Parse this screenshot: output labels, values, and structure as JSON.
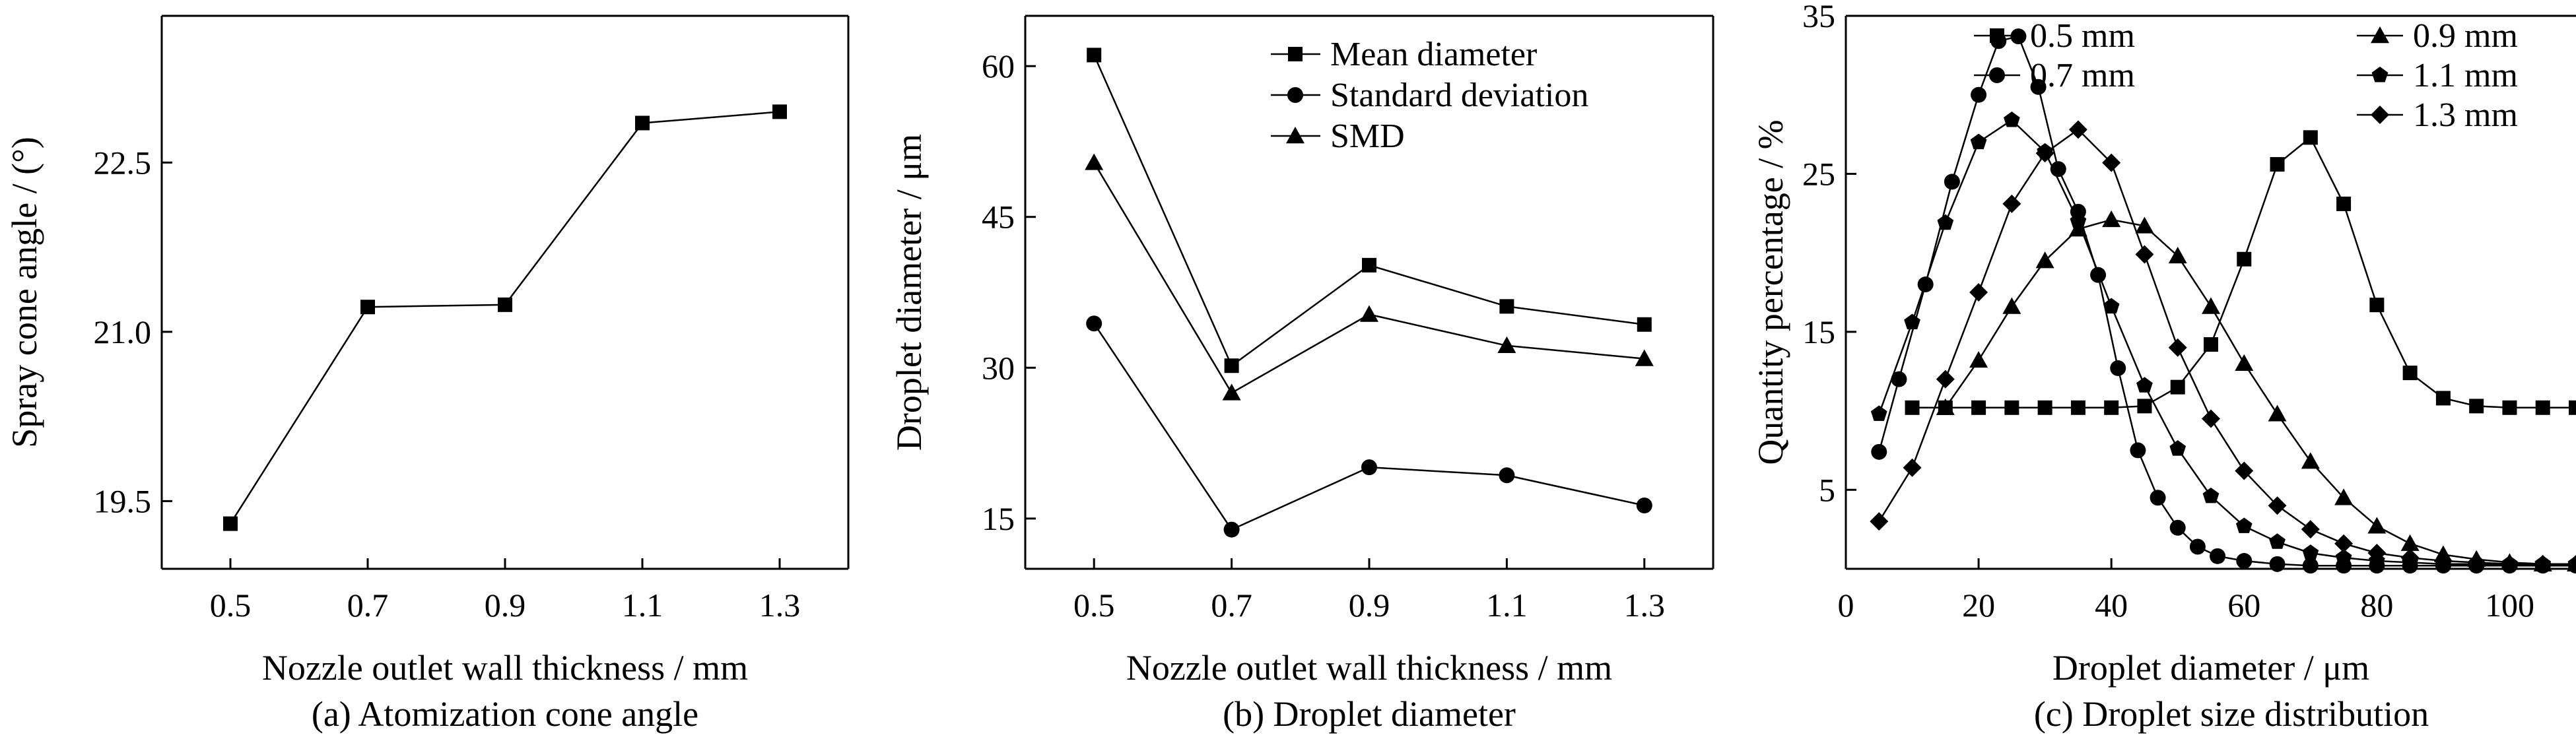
{
  "chart_data": [
    {
      "id": "a",
      "type": "line",
      "caption": "(a) Atomization cone angle",
      "xlabel": "Nozzle outlet wall thickness / mm",
      "ylabel": "Spray cone angle / (°)",
      "xlim": [
        0.4,
        1.4
      ],
      "ylim": [
        18.9,
        23.8
      ],
      "xticks": [
        0.5,
        0.7,
        0.9,
        1.1,
        1.3
      ],
      "xtick_labels": [
        "0.5",
        "0.7",
        "0.9",
        "1.1",
        "1.3"
      ],
      "yticks": [
        19.5,
        21.0,
        22.5
      ],
      "ytick_labels": [
        "19.5",
        "21.0",
        "22.5"
      ],
      "x": [
        0.5,
        0.7,
        0.9,
        1.1,
        1.3
      ],
      "series": [
        {
          "marker": "square",
          "values": [
            19.3,
            21.22,
            21.24,
            22.85,
            22.95
          ]
        }
      ],
      "legend": null
    },
    {
      "id": "b",
      "type": "line",
      "caption": "(b) Droplet diameter",
      "xlabel": "Nozzle outlet wall thickness / mm",
      "ylabel": "Droplet diameter / μm",
      "xlim": [
        0.4,
        1.4
      ],
      "ylim": [
        10,
        65
      ],
      "xticks": [
        0.5,
        0.7,
        0.9,
        1.1,
        1.3
      ],
      "xtick_labels": [
        "0.5",
        "0.7",
        "0.9",
        "1.1",
        "1.3"
      ],
      "yticks": [
        15,
        30,
        45,
        60
      ],
      "ytick_labels": [
        "15",
        "30",
        "45",
        "60"
      ],
      "x": [
        0.5,
        0.7,
        0.9,
        1.1,
        1.3
      ],
      "series": [
        {
          "name": "Mean diameter",
          "marker": "square",
          "values": [
            61.1,
            30.2,
            40.2,
            36.1,
            34.3
          ]
        },
        {
          "name": "Standard deviation",
          "marker": "circle",
          "values": [
            34.4,
            13.9,
            20.1,
            19.3,
            16.3
          ]
        },
        {
          "name": "SMD",
          "marker": "triangle",
          "values": [
            50.4,
            27.5,
            35.3,
            32.2,
            30.9
          ]
        }
      ],
      "legend": "top-right"
    },
    {
      "id": "c",
      "type": "line",
      "caption": "(c) Droplet size distribution",
      "xlabel": "Droplet diameter / μm",
      "ylabel": "Quantity percentage / %",
      "xlim": [
        0,
        110
      ],
      "ylim": [
        0,
        35
      ],
      "xticks": [
        0,
        20,
        40,
        60,
        80,
        100
      ],
      "xtick_labels": [
        "0",
        "20",
        "40",
        "60",
        "80",
        "100"
      ],
      "yticks": [
        5,
        15,
        25,
        35
      ],
      "ytick_labels": [
        "5",
        "15",
        "25",
        "35"
      ],
      "series": [
        {
          "name": "0.5 mm",
          "marker": "square",
          "x": [
            10,
            15,
            20,
            25,
            30,
            35,
            40,
            45,
            50,
            55,
            60,
            65,
            70,
            75,
            80,
            85,
            90,
            95,
            100,
            105,
            110
          ],
          "values": [
            10.2,
            10.2,
            10.2,
            10.2,
            10.2,
            10.2,
            10.2,
            10.3,
            11.5,
            14.2,
            19.6,
            25.6,
            27.3,
            23.1,
            16.7,
            12.4,
            10.8,
            10.3,
            10.2,
            10.2,
            10.2
          ]
        },
        {
          "name": "0.7 mm",
          "marker": "circle",
          "x": [
            5,
            8,
            12,
            16,
            20,
            23,
            26,
            29,
            32,
            35,
            38,
            41,
            44,
            47,
            50,
            53,
            56,
            60,
            65,
            70,
            75,
            80,
            85,
            90,
            95,
            100,
            105,
            110
          ],
          "values": [
            7.4,
            12.0,
            18.0,
            24.5,
            30.0,
            33.4,
            33.7,
            30.5,
            25.3,
            22.6,
            18.6,
            12.7,
            7.5,
            4.5,
            2.6,
            1.4,
            0.8,
            0.5,
            0.3,
            0.2,
            0.2,
            0.2,
            0.2,
            0.2,
            0.2,
            0.2,
            0.2,
            0.2
          ]
        },
        {
          "name": "0.9 mm",
          "marker": "triangle",
          "x": [
            15,
            20,
            25,
            30,
            35,
            40,
            45,
            50,
            55,
            60,
            65,
            70,
            75,
            80,
            85,
            90,
            95,
            100,
            105,
            110
          ],
          "values": [
            10.2,
            13.2,
            16.6,
            19.5,
            21.5,
            22.1,
            21.7,
            19.8,
            16.6,
            13.0,
            9.8,
            6.8,
            4.5,
            2.7,
            1.6,
            0.9,
            0.6,
            0.4,
            0.3,
            0.3
          ]
        },
        {
          "name": "1.1 mm",
          "marker": "pentagon",
          "x": [
            5,
            10,
            15,
            20,
            25,
            30,
            35,
            40,
            45,
            50,
            55,
            60,
            65,
            70,
            75,
            80,
            85,
            90,
            95,
            100,
            105,
            110
          ],
          "values": [
            9.8,
            15.6,
            21.9,
            27.0,
            28.4,
            26.4,
            22.0,
            16.6,
            11.6,
            7.6,
            4.6,
            2.7,
            1.7,
            1.0,
            0.7,
            0.5,
            0.4,
            0.3,
            0.3,
            0.3,
            0.3,
            0.3
          ]
        },
        {
          "name": "1.3 mm",
          "marker": "diamond",
          "x": [
            5,
            10,
            15,
            20,
            25,
            30,
            35,
            40,
            45,
            50,
            55,
            60,
            65,
            70,
            75,
            80,
            85,
            90,
            95,
            100,
            105,
            110
          ],
          "values": [
            3.0,
            6.4,
            12.0,
            17.5,
            23.1,
            26.3,
            27.8,
            25.7,
            19.9,
            14.0,
            9.5,
            6.2,
            4.0,
            2.5,
            1.6,
            1.0,
            0.7,
            0.5,
            0.4,
            0.3,
            0.3,
            0.3
          ]
        }
      ],
      "legend": "top-right"
    }
  ]
}
